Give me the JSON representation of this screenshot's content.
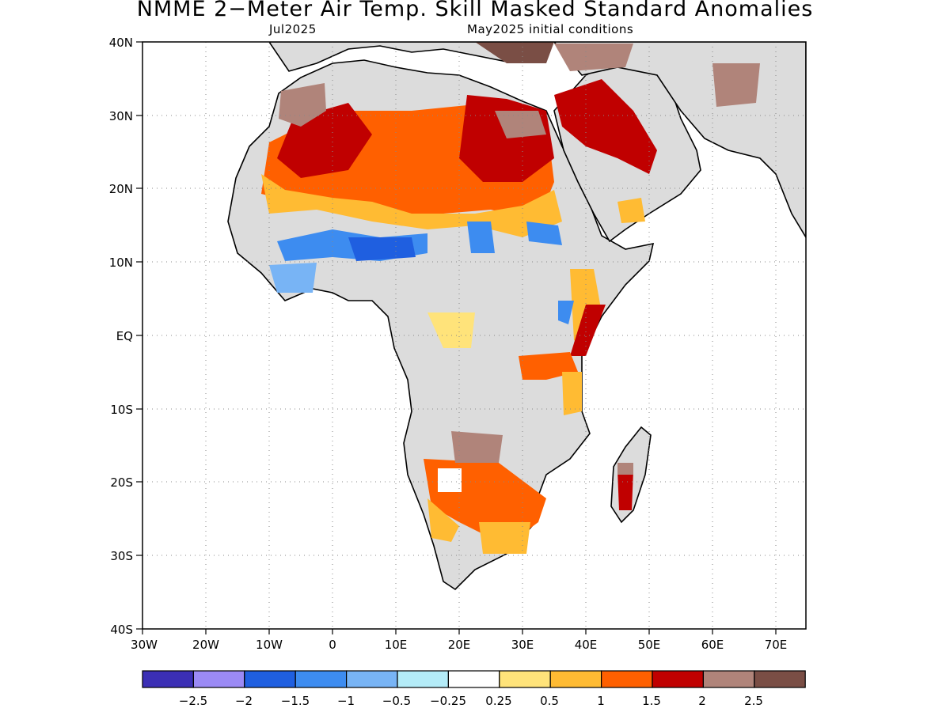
{
  "header": {
    "title": "NMME 2−Meter Air Temp. Skill Masked Standard Anomalies",
    "subtitle_left": "Jul2025",
    "subtitle_right": "May2025 initial conditions"
  },
  "map": {
    "lon_range": [
      -30,
      75
    ],
    "lat_range": [
      -40,
      40
    ],
    "grid": true,
    "lat_labels": [
      "40N",
      "30N",
      "20N",
      "10N",
      "EQ",
      "10S",
      "20S",
      "30S",
      "40S"
    ],
    "lon_labels": [
      "30W",
      "20W",
      "10W",
      "0",
      "10E",
      "20E",
      "30E",
      "40E",
      "50E",
      "60E",
      "70E"
    ],
    "fields": {
      "land_color": "#dcdcdc",
      "ocean_color": "#ffffff"
    }
  },
  "legend": {
    "colors": [
      "#3b2fb5",
      "#9b8af5",
      "#1f5fe0",
      "#3d8cf0",
      "#78b4f5",
      "#b4ecf8",
      "#ffffff",
      "#ffe37a",
      "#ffbb33",
      "#ff6000",
      "#c00000",
      "#b0847a",
      "#7a4e45"
    ],
    "labels": [
      "−2.5",
      "−2",
      "−1.5",
      "−1",
      "−0.5",
      "−0.25",
      "0.25",
      "0.5",
      "1",
      "1.5",
      "2",
      "2.5"
    ]
  }
}
